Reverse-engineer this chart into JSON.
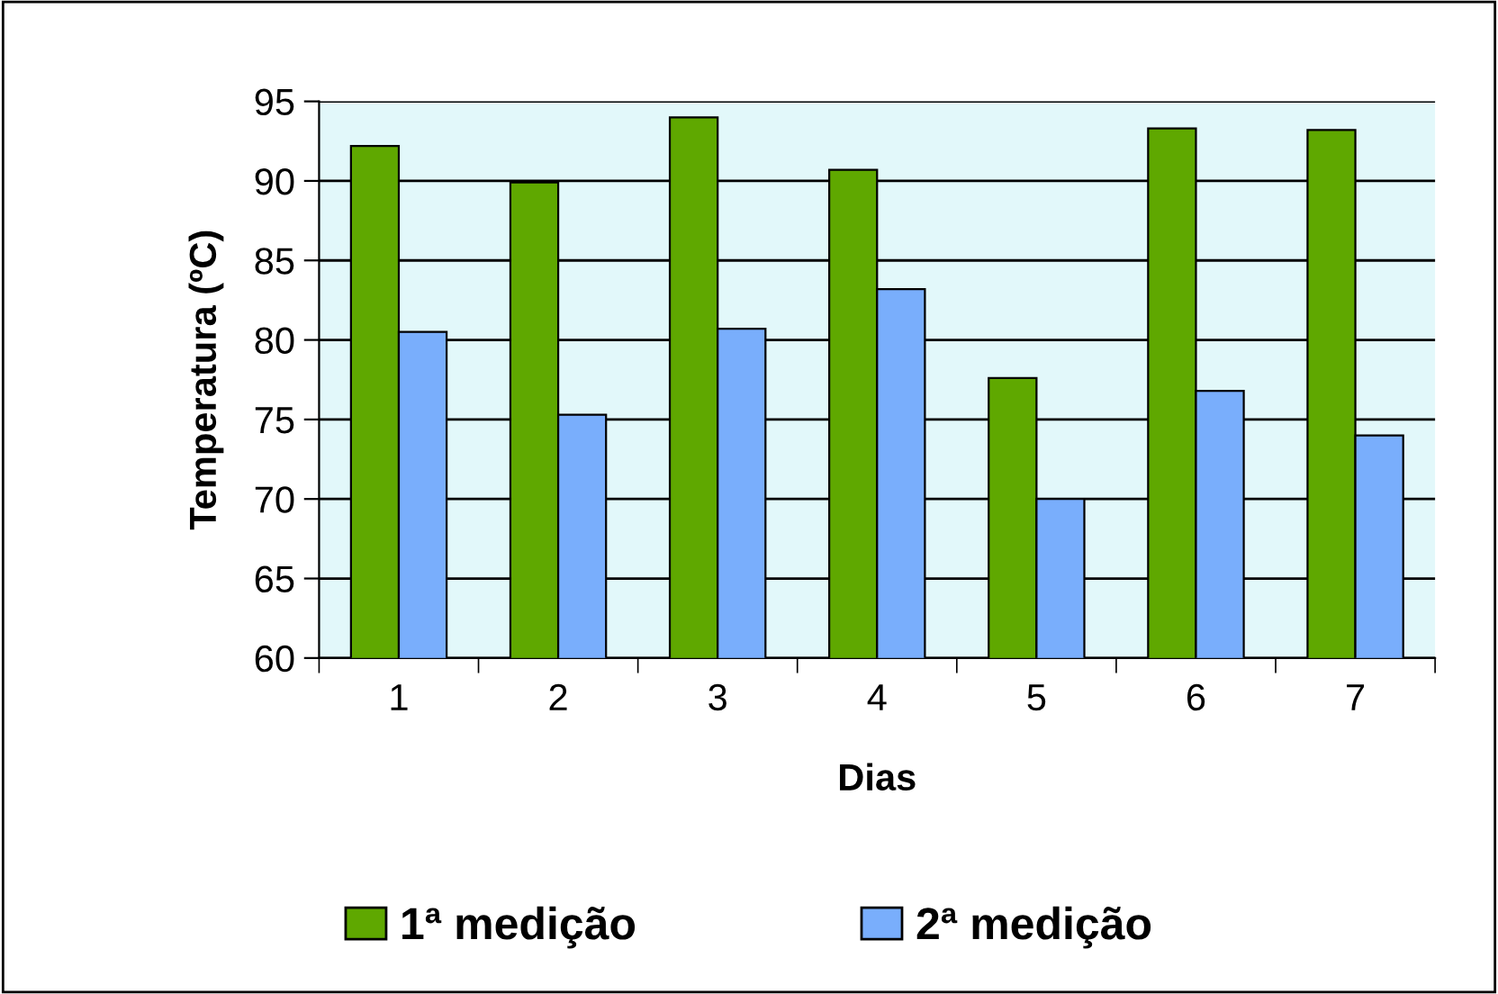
{
  "chart_data": {
    "type": "bar",
    "xlabel": "Dias",
    "ylabel": "Temperatura (ºC)",
    "categories": [
      "1",
      "2",
      "3",
      "4",
      "5",
      "6",
      "7"
    ],
    "series": [
      {
        "name": "1ª medição",
        "color": "#5fa800",
        "values": [
          92.2,
          89.9,
          94.0,
          90.7,
          77.6,
          93.3,
          93.2
        ]
      },
      {
        "name": "2ª medição",
        "color": "#79aefc",
        "values": [
          80.5,
          75.3,
          80.7,
          83.2,
          70.0,
          76.8,
          74.0
        ]
      }
    ],
    "ylim": [
      60,
      95
    ],
    "yticks": [
      60,
      65,
      70,
      75,
      80,
      85,
      90,
      95
    ],
    "grid": "y",
    "legend": "bottom"
  }
}
